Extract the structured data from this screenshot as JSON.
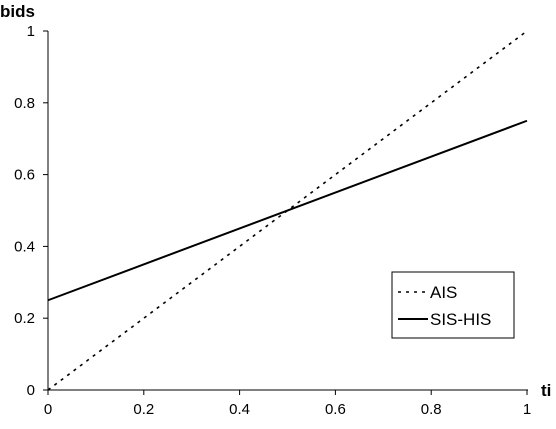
{
  "chart_data": {
    "type": "line",
    "ylabel": "bids",
    "xlabel": "ti",
    "xlim": [
      0,
      1
    ],
    "ylim": [
      0,
      1
    ],
    "x_ticks": [
      0,
      0.2,
      0.4,
      0.6,
      0.8,
      1
    ],
    "y_ticks": [
      0,
      0.2,
      0.4,
      0.6,
      0.8,
      1
    ],
    "x_tick_labels": [
      "0",
      "0.2",
      "0.4",
      "0.6",
      "0.8",
      "1"
    ],
    "y_tick_labels": [
      "0",
      "0.2",
      "0.4",
      "0.6",
      "0.8",
      "1"
    ],
    "grid": false,
    "legend_position": "lower-right",
    "series": [
      {
        "name": "AIS",
        "style": "dashed",
        "color": "#000000",
        "x": [
          0,
          1
        ],
        "y": [
          0,
          1
        ]
      },
      {
        "name": "SIS-HIS",
        "style": "solid",
        "color": "#000000",
        "x": [
          0,
          1
        ],
        "y": [
          0.25,
          0.75
        ]
      }
    ]
  }
}
